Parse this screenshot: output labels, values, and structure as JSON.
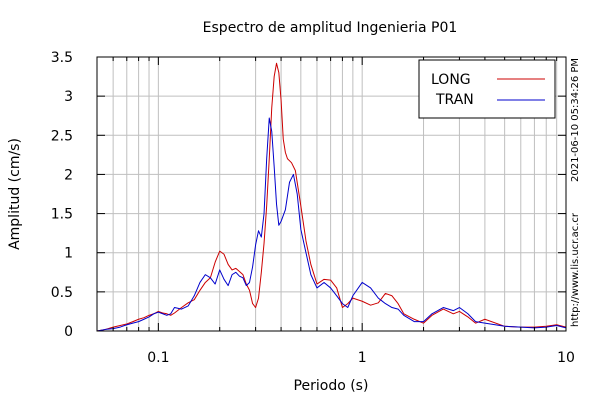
{
  "chart_data": {
    "type": "line",
    "title": "Espectro de amplitud Ingenieria P01",
    "xlabel": "Periodo (s)",
    "ylabel": "Amplitud (cm/s)",
    "x_scale": "log",
    "xlim": [
      0.05,
      10
    ],
    "ylim": [
      0,
      3.5
    ],
    "x_ticks": [
      {
        "value": 0.1,
        "label": "0.1"
      },
      {
        "value": 1,
        "label": "1"
      },
      {
        "value": 10,
        "label": "10"
      }
    ],
    "y_ticks": [
      {
        "value": 0,
        "label": "0"
      },
      {
        "value": 0.5,
        "label": "0.5"
      },
      {
        "value": 1,
        "label": "1"
      },
      {
        "value": 1.5,
        "label": "1.5"
      },
      {
        "value": 2,
        "label": "2"
      },
      {
        "value": 2.5,
        "label": "2.5"
      },
      {
        "value": 3,
        "label": "3"
      },
      {
        "value": 3.5,
        "label": "3.5"
      }
    ],
    "grid": true,
    "legend": "top-right",
    "series": [
      {
        "name": "LONG",
        "color": "#cc0000",
        "points": [
          [
            0.05,
            0.0
          ],
          [
            0.055,
            0.02
          ],
          [
            0.06,
            0.05
          ],
          [
            0.065,
            0.07
          ],
          [
            0.07,
            0.09
          ],
          [
            0.075,
            0.12
          ],
          [
            0.08,
            0.15
          ],
          [
            0.085,
            0.17
          ],
          [
            0.09,
            0.2
          ],
          [
            0.095,
            0.22
          ],
          [
            0.1,
            0.25
          ],
          [
            0.105,
            0.23
          ],
          [
            0.11,
            0.22
          ],
          [
            0.115,
            0.2
          ],
          [
            0.12,
            0.23
          ],
          [
            0.13,
            0.3
          ],
          [
            0.14,
            0.36
          ],
          [
            0.15,
            0.4
          ],
          [
            0.16,
            0.52
          ],
          [
            0.17,
            0.62
          ],
          [
            0.18,
            0.68
          ],
          [
            0.19,
            0.88
          ],
          [
            0.2,
            1.02
          ],
          [
            0.21,
            0.98
          ],
          [
            0.22,
            0.85
          ],
          [
            0.23,
            0.78
          ],
          [
            0.24,
            0.8
          ],
          [
            0.25,
            0.76
          ],
          [
            0.26,
            0.72
          ],
          [
            0.27,
            0.6
          ],
          [
            0.28,
            0.52
          ],
          [
            0.29,
            0.35
          ],
          [
            0.3,
            0.3
          ],
          [
            0.31,
            0.42
          ],
          [
            0.32,
            0.75
          ],
          [
            0.33,
            1.12
          ],
          [
            0.34,
            1.6
          ],
          [
            0.35,
            2.2
          ],
          [
            0.36,
            2.85
          ],
          [
            0.37,
            3.25
          ],
          [
            0.38,
            3.42
          ],
          [
            0.39,
            3.3
          ],
          [
            0.4,
            2.95
          ],
          [
            0.41,
            2.45
          ],
          [
            0.42,
            2.28
          ],
          [
            0.43,
            2.2
          ],
          [
            0.45,
            2.15
          ],
          [
            0.47,
            2.05
          ],
          [
            0.5,
            1.6
          ],
          [
            0.53,
            1.15
          ],
          [
            0.56,
            0.85
          ],
          [
            0.6,
            0.6
          ],
          [
            0.65,
            0.66
          ],
          [
            0.7,
            0.65
          ],
          [
            0.75,
            0.55
          ],
          [
            0.8,
            0.3
          ],
          [
            0.85,
            0.35
          ],
          [
            0.9,
            0.42
          ],
          [
            1.0,
            0.38
          ],
          [
            1.1,
            0.33
          ],
          [
            1.2,
            0.36
          ],
          [
            1.3,
            0.48
          ],
          [
            1.4,
            0.45
          ],
          [
            1.5,
            0.35
          ],
          [
            1.6,
            0.22
          ],
          [
            1.8,
            0.15
          ],
          [
            2.0,
            0.1
          ],
          [
            2.2,
            0.2
          ],
          [
            2.5,
            0.28
          ],
          [
            2.8,
            0.22
          ],
          [
            3.0,
            0.25
          ],
          [
            3.3,
            0.18
          ],
          [
            3.6,
            0.1
          ],
          [
            4.0,
            0.15
          ],
          [
            5.0,
            0.06
          ],
          [
            6.0,
            0.05
          ],
          [
            7.0,
            0.05
          ],
          [
            8.0,
            0.06
          ],
          [
            9.0,
            0.08
          ],
          [
            10.0,
            0.05
          ]
        ]
      },
      {
        "name": "TRAN",
        "color": "#0000cc",
        "points": [
          [
            0.05,
            0.0
          ],
          [
            0.055,
            0.02
          ],
          [
            0.06,
            0.03
          ],
          [
            0.065,
            0.05
          ],
          [
            0.07,
            0.08
          ],
          [
            0.075,
            0.1
          ],
          [
            0.08,
            0.12
          ],
          [
            0.085,
            0.15
          ],
          [
            0.09,
            0.18
          ],
          [
            0.095,
            0.22
          ],
          [
            0.1,
            0.24
          ],
          [
            0.105,
            0.22
          ],
          [
            0.11,
            0.2
          ],
          [
            0.115,
            0.22
          ],
          [
            0.12,
            0.3
          ],
          [
            0.13,
            0.28
          ],
          [
            0.14,
            0.32
          ],
          [
            0.15,
            0.45
          ],
          [
            0.16,
            0.62
          ],
          [
            0.17,
            0.72
          ],
          [
            0.18,
            0.68
          ],
          [
            0.19,
            0.6
          ],
          [
            0.2,
            0.78
          ],
          [
            0.21,
            0.66
          ],
          [
            0.22,
            0.58
          ],
          [
            0.23,
            0.72
          ],
          [
            0.24,
            0.75
          ],
          [
            0.25,
            0.7
          ],
          [
            0.26,
            0.68
          ],
          [
            0.27,
            0.58
          ],
          [
            0.28,
            0.62
          ],
          [
            0.29,
            0.82
          ],
          [
            0.3,
            1.1
          ],
          [
            0.31,
            1.28
          ],
          [
            0.32,
            1.2
          ],
          [
            0.33,
            1.5
          ],
          [
            0.34,
            2.2
          ],
          [
            0.35,
            2.72
          ],
          [
            0.36,
            2.55
          ],
          [
            0.37,
            2.1
          ],
          [
            0.38,
            1.62
          ],
          [
            0.39,
            1.35
          ],
          [
            0.4,
            1.4
          ],
          [
            0.42,
            1.55
          ],
          [
            0.44,
            1.9
          ],
          [
            0.46,
            2.0
          ],
          [
            0.48,
            1.75
          ],
          [
            0.5,
            1.3
          ],
          [
            0.53,
            1.0
          ],
          [
            0.56,
            0.72
          ],
          [
            0.6,
            0.55
          ],
          [
            0.65,
            0.62
          ],
          [
            0.7,
            0.55
          ],
          [
            0.75,
            0.45
          ],
          [
            0.8,
            0.35
          ],
          [
            0.85,
            0.3
          ],
          [
            0.9,
            0.45
          ],
          [
            1.0,
            0.62
          ],
          [
            1.1,
            0.55
          ],
          [
            1.2,
            0.42
          ],
          [
            1.3,
            0.35
          ],
          [
            1.4,
            0.3
          ],
          [
            1.5,
            0.28
          ],
          [
            1.6,
            0.2
          ],
          [
            1.8,
            0.12
          ],
          [
            2.0,
            0.12
          ],
          [
            2.2,
            0.22
          ],
          [
            2.5,
            0.3
          ],
          [
            2.8,
            0.26
          ],
          [
            3.0,
            0.3
          ],
          [
            3.3,
            0.22
          ],
          [
            3.6,
            0.12
          ],
          [
            4.0,
            0.1
          ],
          [
            5.0,
            0.06
          ],
          [
            6.0,
            0.05
          ],
          [
            7.0,
            0.04
          ],
          [
            8.0,
            0.05
          ],
          [
            9.0,
            0.07
          ],
          [
            10.0,
            0.04
          ]
        ]
      }
    ],
    "side_label": "2021-06-10 05:34:26 PM",
    "source_label": "http://www.lis.ucr.ac.cr"
  }
}
